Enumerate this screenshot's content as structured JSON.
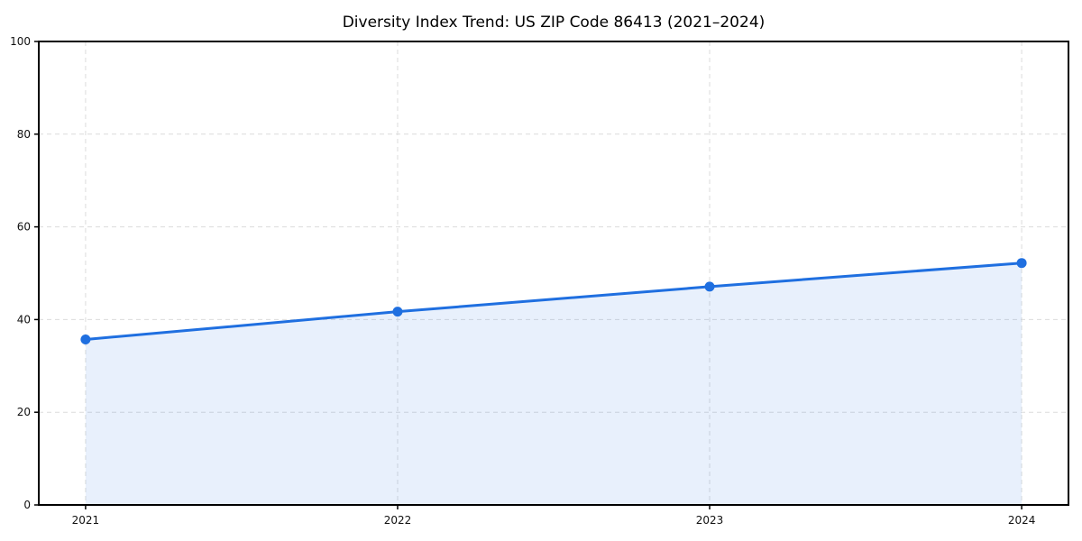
{
  "title": "Diversity Index Trend: US ZIP Code 86413 (2021–2024)",
  "chart_data": {
    "type": "line",
    "x": [
      2021,
      2022,
      2023,
      2024
    ],
    "x_tick_labels": [
      "2021",
      "2022",
      "2023",
      "2024"
    ],
    "series": [
      {
        "name": "Diversity Index",
        "values": [
          35.7,
          41.7,
          47.1,
          52.2
        ],
        "marker": "circle",
        "area_fill": true
      }
    ],
    "title": "Diversity Index Trend: US ZIP Code 86413 (2021–2024)",
    "xlabel": "",
    "ylabel": "",
    "ylim": [
      0,
      100
    ],
    "xlim": [
      2020.85,
      2024.15
    ],
    "yticks": [
      0,
      20,
      40,
      60,
      80,
      100
    ],
    "grid": "both-dashed",
    "legend": "none",
    "colors": {
      "line": "#1f6fe0",
      "marker": "#1f6fe0",
      "area_fill": "rgba(31,111,224,0.10)",
      "grid": "#dcdcdc",
      "spine": "#000000",
      "tick_text": "#111111",
      "background": "#ffffff"
    }
  }
}
